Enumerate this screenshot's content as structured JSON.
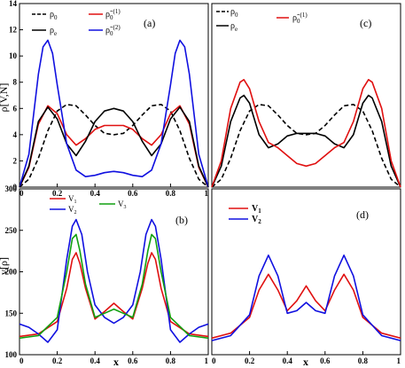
{
  "chart_data": [
    {
      "id": "a",
      "type": "line",
      "panel_label": "(a)",
      "ylabel": "ρ[V,N]",
      "xlabel": "",
      "xlim": [
        0,
        1
      ],
      "ylim": [
        0,
        14
      ],
      "xticks": [
        "0",
        "0.2",
        "0.4",
        "0.6",
        "0.8",
        "1"
      ],
      "yticks": [
        "0",
        "2",
        "4",
        "6",
        "8",
        "10",
        "12",
        "14"
      ],
      "legend_position": "top",
      "series": [
        {
          "name": "ρ0",
          "color": "#000000",
          "dash": true,
          "x": [
            0,
            0.05,
            0.1,
            0.15,
            0.2,
            0.25,
            0.3,
            0.35,
            0.4,
            0.45,
            0.5,
            0.55,
            0.6,
            0.65,
            0.7,
            0.75,
            0.8,
            0.85,
            0.9,
            0.95,
            1
          ],
          "y": [
            0,
            0.6,
            2.2,
            4.3,
            5.8,
            6.3,
            6.2,
            5.5,
            4.7,
            4.1,
            4.0,
            4.1,
            4.7,
            5.5,
            6.2,
            6.3,
            5.8,
            4.3,
            2.2,
            0.6,
            0
          ]
        },
        {
          "name": "ρ~0(1)",
          "color": "#e01010",
          "dash": false,
          "x": [
            0,
            0.05,
            0.1,
            0.15,
            0.2,
            0.25,
            0.3,
            0.35,
            0.4,
            0.45,
            0.5,
            0.55,
            0.6,
            0.65,
            0.7,
            0.75,
            0.8,
            0.85,
            0.9,
            0.95,
            1
          ],
          "y": [
            0,
            1.5,
            4.8,
            6.2,
            5.6,
            4.0,
            3.2,
            3.7,
            4.4,
            4.7,
            4.7,
            4.7,
            4.4,
            3.7,
            3.2,
            4.0,
            5.6,
            6.2,
            4.8,
            1.5,
            0
          ]
        },
        {
          "name": "ρe",
          "color": "#000000",
          "dash": false,
          "x": [
            0,
            0.05,
            0.1,
            0.15,
            0.2,
            0.25,
            0.3,
            0.35,
            0.4,
            0.45,
            0.5,
            0.55,
            0.6,
            0.65,
            0.7,
            0.75,
            0.8,
            0.85,
            0.9,
            0.95,
            1
          ],
          "y": [
            0,
            1.6,
            5.0,
            6.1,
            5.2,
            3.3,
            2.4,
            3.5,
            5.0,
            5.8,
            6.0,
            5.8,
            5.0,
            3.5,
            2.4,
            3.3,
            5.2,
            6.1,
            5.0,
            1.6,
            0
          ]
        },
        {
          "name": "ρ~0(2)",
          "color": "#1010e0",
          "dash": false,
          "x": [
            0,
            0.05,
            0.1,
            0.125,
            0.15,
            0.175,
            0.2,
            0.25,
            0.3,
            0.35,
            0.4,
            0.45,
            0.5,
            0.55,
            0.6,
            0.65,
            0.7,
            0.75,
            0.8,
            0.825,
            0.85,
            0.875,
            0.9,
            0.95,
            1
          ],
          "y": [
            0,
            2.5,
            8.6,
            10.7,
            11.2,
            10.2,
            7.8,
            3.3,
            1.3,
            0.8,
            0.9,
            1.1,
            1.2,
            1.1,
            0.9,
            0.8,
            1.3,
            3.3,
            7.8,
            10.2,
            11.2,
            10.7,
            8.6,
            2.5,
            0
          ]
        }
      ]
    },
    {
      "id": "b",
      "type": "line",
      "panel_label": "(b)",
      "ylabel": "v[ρ]",
      "xlabel": "x",
      "xlim": [
        0,
        1
      ],
      "ylim": [
        100,
        300
      ],
      "xticks": [
        "0",
        "0.2",
        "0.4",
        "0.6",
        "0.8",
        "1"
      ],
      "yticks": [
        "100",
        "150",
        "200",
        "250",
        "300"
      ],
      "legend_position": "top",
      "series": [
        {
          "name": "V1",
          "color": "#e01010",
          "x": [
            0,
            0.1,
            0.2,
            0.25,
            0.28,
            0.3,
            0.32,
            0.35,
            0.4,
            0.45,
            0.5,
            0.55,
            0.6,
            0.65,
            0.68,
            0.7,
            0.72,
            0.75,
            0.8,
            0.9,
            1
          ],
          "y": [
            122,
            125,
            140,
            180,
            215,
            223,
            210,
            180,
            143,
            152,
            162,
            152,
            143,
            180,
            210,
            223,
            215,
            180,
            140,
            125,
            122
          ]
        },
        {
          "name": "V2",
          "color": "#1010e0",
          "x": [
            0,
            0.05,
            0.1,
            0.15,
            0.2,
            0.25,
            0.28,
            0.3,
            0.33,
            0.36,
            0.4,
            0.45,
            0.5,
            0.55,
            0.6,
            0.64,
            0.67,
            0.7,
            0.72,
            0.75,
            0.8,
            0.85,
            0.9,
            0.95,
            1
          ],
          "y": [
            137,
            133,
            125,
            115,
            130,
            215,
            255,
            263,
            245,
            200,
            160,
            145,
            138,
            145,
            160,
            200,
            245,
            263,
            255,
            215,
            130,
            115,
            125,
            133,
            137
          ]
        },
        {
          "name": "V3",
          "color": "#10a010",
          "x": [
            0,
            0.1,
            0.2,
            0.25,
            0.28,
            0.3,
            0.32,
            0.35,
            0.4,
            0.45,
            0.5,
            0.55,
            0.6,
            0.65,
            0.68,
            0.7,
            0.72,
            0.75,
            0.8,
            0.9,
            1
          ],
          "y": [
            120,
            123,
            145,
            200,
            240,
            245,
            225,
            185,
            145,
            150,
            155,
            150,
            145,
            185,
            225,
            245,
            240,
            200,
            145,
            123,
            120
          ]
        }
      ]
    },
    {
      "id": "c",
      "type": "line",
      "panel_label": "(c)",
      "ylabel": "",
      "xlabel": "",
      "xlim": [
        0,
        1
      ],
      "ylim": [
        0,
        14
      ],
      "xticks": [],
      "yticks": [],
      "legend_position": "top-left",
      "series": [
        {
          "name": "ρ0",
          "color": "#000000",
          "dash": true,
          "x": [
            0,
            0.05,
            0.1,
            0.15,
            0.2,
            0.25,
            0.3,
            0.35,
            0.4,
            0.45,
            0.5,
            0.55,
            0.6,
            0.65,
            0.7,
            0.75,
            0.8,
            0.85,
            0.9,
            0.95,
            1
          ],
          "y": [
            0,
            0.6,
            2.2,
            4.3,
            5.8,
            6.3,
            6.2,
            5.5,
            4.7,
            4.1,
            4.0,
            4.1,
            4.7,
            5.5,
            6.2,
            6.3,
            5.8,
            4.3,
            2.2,
            0.6,
            0
          ]
        },
        {
          "name": "ρe",
          "color": "#000000",
          "dash": false,
          "x": [
            0,
            0.05,
            0.1,
            0.15,
            0.17,
            0.2,
            0.25,
            0.3,
            0.35,
            0.4,
            0.45,
            0.5,
            0.55,
            0.6,
            0.65,
            0.7,
            0.75,
            0.8,
            0.83,
            0.85,
            0.9,
            0.95,
            1
          ],
          "y": [
            0,
            1.6,
            5.0,
            6.8,
            7.0,
            6.4,
            4.0,
            3.0,
            3.3,
            3.9,
            4.1,
            4.1,
            4.1,
            3.9,
            3.3,
            3.0,
            4.0,
            6.4,
            7.0,
            6.8,
            5.0,
            1.6,
            0
          ]
        },
        {
          "name": "ρ~0(1)",
          "color": "#e01010",
          "dash": false,
          "x": [
            0,
            0.05,
            0.1,
            0.15,
            0.17,
            0.2,
            0.25,
            0.3,
            0.35,
            0.4,
            0.45,
            0.5,
            0.55,
            0.6,
            0.65,
            0.7,
            0.75,
            0.8,
            0.83,
            0.85,
            0.9,
            0.95,
            1
          ],
          "y": [
            0,
            2.0,
            6.0,
            8.0,
            8.2,
            7.5,
            5.0,
            3.4,
            3.0,
            2.4,
            1.8,
            1.6,
            1.8,
            2.4,
            3.0,
            3.4,
            5.0,
            7.5,
            8.2,
            8.0,
            6.0,
            2.0,
            0
          ]
        }
      ]
    },
    {
      "id": "d",
      "type": "line",
      "panel_label": "(d)",
      "ylabel": "",
      "xlabel": "x",
      "xlim": [
        0,
        1
      ],
      "ylim": [
        100,
        300
      ],
      "xticks": [
        "0",
        "0.2",
        "0.4",
        "0.6",
        "0.8",
        "1"
      ],
      "yticks": [],
      "legend_position": "top-left",
      "series": [
        {
          "name": "V1",
          "color": "#e01010",
          "x": [
            0,
            0.1,
            0.2,
            0.25,
            0.3,
            0.35,
            0.4,
            0.45,
            0.5,
            0.55,
            0.6,
            0.65,
            0.7,
            0.75,
            0.8,
            0.9,
            1
          ],
          "y": [
            120,
            126,
            145,
            178,
            197,
            178,
            153,
            165,
            183,
            165,
            153,
            178,
            197,
            178,
            145,
            126,
            120
          ]
        },
        {
          "name": "V2",
          "color": "#1010e0",
          "x": [
            0,
            0.1,
            0.2,
            0.25,
            0.3,
            0.35,
            0.4,
            0.45,
            0.5,
            0.55,
            0.6,
            0.65,
            0.7,
            0.75,
            0.8,
            0.9,
            1
          ],
          "y": [
            117,
            123,
            148,
            195,
            220,
            195,
            150,
            153,
            163,
            153,
            150,
            195,
            220,
            195,
            148,
            123,
            117
          ]
        }
      ]
    }
  ]
}
